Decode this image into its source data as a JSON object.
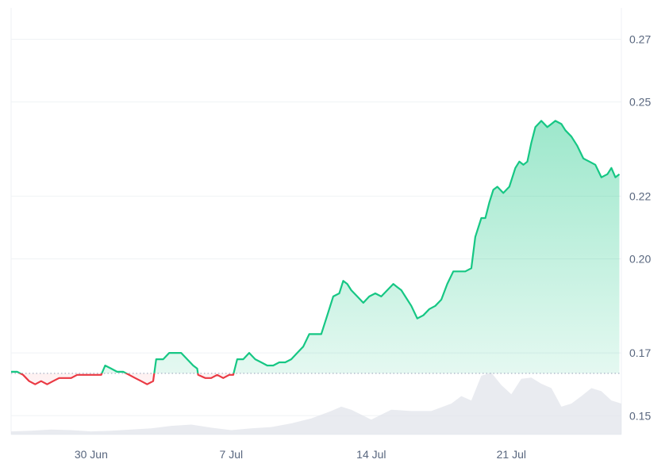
{
  "chart_data": {
    "type": "area",
    "baseline": 0.1635,
    "colors": {
      "up": "#16c784",
      "down": "#ea3943",
      "grid": "#eff2f5",
      "volume": "#dfe3ea",
      "axis_text": "#58667e"
    },
    "y_axis": {
      "position": "right",
      "ticks": [
        0.15,
        0.17,
        0.2,
        0.22,
        0.25,
        0.27
      ],
      "tick_labels": [
        "0.15",
        "0.17",
        "0.20",
        "0.22",
        "0.25",
        "0.27"
      ],
      "range": [
        0.144,
        0.28
      ]
    },
    "x_axis": {
      "range_days": [
        0,
        30.5
      ],
      "ticks": [
        {
          "day": 4,
          "label": "30 Jun"
        },
        {
          "day": 11,
          "label": "7 Jul"
        },
        {
          "day": 18,
          "label": "14 Jul"
        },
        {
          "day": 25,
          "label": "21 Jul"
        }
      ]
    },
    "price_series": [
      [
        0.0,
        0.164
      ],
      [
        0.3,
        0.164
      ],
      [
        0.6,
        0.163
      ],
      [
        0.9,
        0.161
      ],
      [
        1.2,
        0.16
      ],
      [
        1.5,
        0.161
      ],
      [
        1.8,
        0.16
      ],
      [
        2.1,
        0.161
      ],
      [
        2.4,
        0.162
      ],
      [
        2.7,
        0.162
      ],
      [
        3.0,
        0.162
      ],
      [
        3.3,
        0.163
      ],
      [
        3.6,
        0.163
      ],
      [
        3.9,
        0.163
      ],
      [
        4.2,
        0.163
      ],
      [
        4.5,
        0.163
      ],
      [
        4.7,
        0.166
      ],
      [
        5.0,
        0.165
      ],
      [
        5.3,
        0.164
      ],
      [
        5.6,
        0.164
      ],
      [
        5.9,
        0.163
      ],
      [
        6.2,
        0.162
      ],
      [
        6.5,
        0.161
      ],
      [
        6.8,
        0.16
      ],
      [
        7.1,
        0.161
      ],
      [
        7.25,
        0.168
      ],
      [
        7.6,
        0.168
      ],
      [
        7.9,
        0.17
      ],
      [
        8.2,
        0.17
      ],
      [
        8.5,
        0.17
      ],
      [
        8.8,
        0.168
      ],
      [
        9.1,
        0.166
      ],
      [
        9.3,
        0.165
      ],
      [
        9.35,
        0.163
      ],
      [
        9.7,
        0.162
      ],
      [
        10.0,
        0.162
      ],
      [
        10.3,
        0.163
      ],
      [
        10.6,
        0.162
      ],
      [
        10.9,
        0.163
      ],
      [
        11.1,
        0.163
      ],
      [
        11.3,
        0.168
      ],
      [
        11.6,
        0.168
      ],
      [
        11.9,
        0.17
      ],
      [
        12.2,
        0.168
      ],
      [
        12.5,
        0.167
      ],
      [
        12.8,
        0.166
      ],
      [
        13.1,
        0.166
      ],
      [
        13.4,
        0.167
      ],
      [
        13.7,
        0.167
      ],
      [
        14.0,
        0.168
      ],
      [
        14.3,
        0.17
      ],
      [
        14.6,
        0.172
      ],
      [
        14.9,
        0.176
      ],
      [
        15.2,
        0.176
      ],
      [
        15.5,
        0.176
      ],
      [
        15.8,
        0.182
      ],
      [
        16.1,
        0.188
      ],
      [
        16.4,
        0.189
      ],
      [
        16.6,
        0.193
      ],
      [
        16.8,
        0.192
      ],
      [
        17.0,
        0.19
      ],
      [
        17.3,
        0.188
      ],
      [
        17.6,
        0.186
      ],
      [
        17.9,
        0.188
      ],
      [
        18.2,
        0.189
      ],
      [
        18.5,
        0.188
      ],
      [
        18.8,
        0.19
      ],
      [
        19.1,
        0.192
      ],
      [
        19.3,
        0.191
      ],
      [
        19.5,
        0.19
      ],
      [
        19.7,
        0.188
      ],
      [
        20.0,
        0.185
      ],
      [
        20.3,
        0.181
      ],
      [
        20.6,
        0.182
      ],
      [
        20.9,
        0.184
      ],
      [
        21.2,
        0.185
      ],
      [
        21.5,
        0.187
      ],
      [
        21.8,
        0.192
      ],
      [
        22.1,
        0.196
      ],
      [
        22.4,
        0.196
      ],
      [
        22.7,
        0.196
      ],
      [
        23.0,
        0.197
      ],
      [
        23.2,
        0.207
      ],
      [
        23.5,
        0.213
      ],
      [
        23.7,
        0.213
      ],
      [
        23.9,
        0.218
      ],
      [
        24.1,
        0.222
      ],
      [
        24.3,
        0.223
      ],
      [
        24.6,
        0.221
      ],
      [
        24.9,
        0.223
      ],
      [
        25.2,
        0.229
      ],
      [
        25.4,
        0.231
      ],
      [
        25.6,
        0.23
      ],
      [
        25.8,
        0.231
      ],
      [
        26.0,
        0.237
      ],
      [
        26.2,
        0.242
      ],
      [
        26.5,
        0.244
      ],
      [
        26.8,
        0.242
      ],
      [
        27.0,
        0.243
      ],
      [
        27.2,
        0.244
      ],
      [
        27.5,
        0.243
      ],
      [
        27.7,
        0.241
      ],
      [
        28.0,
        0.239
      ],
      [
        28.3,
        0.236
      ],
      [
        28.6,
        0.232
      ],
      [
        28.9,
        0.231
      ],
      [
        29.2,
        0.23
      ],
      [
        29.5,
        0.226
      ],
      [
        29.8,
        0.227
      ],
      [
        30.0,
        0.229
      ],
      [
        30.2,
        0.226
      ],
      [
        30.4,
        0.227
      ]
    ],
    "volume_series": [
      [
        0.0,
        0.05
      ],
      [
        1.0,
        0.06
      ],
      [
        2.0,
        0.08
      ],
      [
        3.0,
        0.07
      ],
      [
        4.0,
        0.05
      ],
      [
        5.0,
        0.06
      ],
      [
        6.0,
        0.08
      ],
      [
        7.0,
        0.1
      ],
      [
        8.0,
        0.14
      ],
      [
        9.0,
        0.16
      ],
      [
        10.0,
        0.11
      ],
      [
        11.0,
        0.07
      ],
      [
        12.0,
        0.1
      ],
      [
        13.0,
        0.12
      ],
      [
        14.0,
        0.18
      ],
      [
        15.0,
        0.26
      ],
      [
        16.0,
        0.38
      ],
      [
        16.5,
        0.45
      ],
      [
        17.0,
        0.4
      ],
      [
        18.0,
        0.24
      ],
      [
        19.0,
        0.4
      ],
      [
        20.0,
        0.38
      ],
      [
        21.0,
        0.38
      ],
      [
        22.0,
        0.5
      ],
      [
        22.5,
        0.62
      ],
      [
        23.0,
        0.55
      ],
      [
        23.5,
        0.95
      ],
      [
        24.0,
        1.0
      ],
      [
        24.5,
        0.8
      ],
      [
        25.0,
        0.65
      ],
      [
        25.5,
        0.9
      ],
      [
        26.0,
        0.92
      ],
      [
        26.5,
        0.82
      ],
      [
        27.0,
        0.75
      ],
      [
        27.5,
        0.45
      ],
      [
        28.0,
        0.5
      ],
      [
        28.5,
        0.62
      ],
      [
        29.0,
        0.75
      ],
      [
        29.5,
        0.7
      ],
      [
        30.0,
        0.55
      ],
      [
        30.5,
        0.5
      ]
    ]
  }
}
